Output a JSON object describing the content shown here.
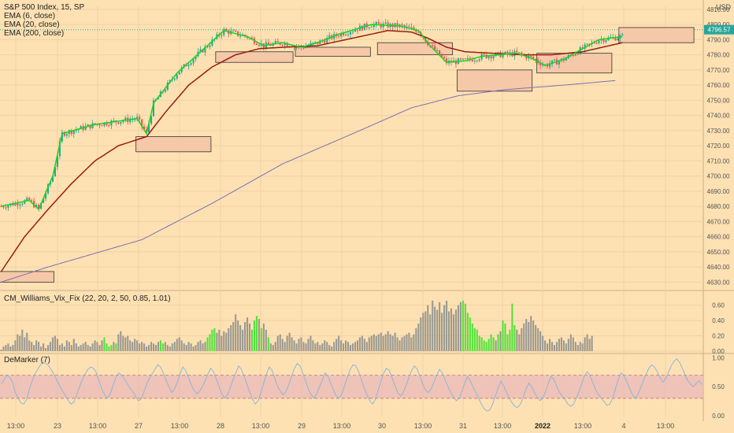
{
  "header": {
    "symbol_line": "S&P 500 Index, 15, SP",
    "indicators": [
      "EMA (6, close)",
      "EMA (20, close)",
      "EMA (200, close)"
    ],
    "currency": "USD",
    "last_price": "4796.57"
  },
  "colors": {
    "background": "#fde1b3",
    "candle_up": "#26a69a",
    "candle_down": "#ef5350",
    "ema6": "#19d419",
    "ema20": "#9b1b10",
    "ema200": "#7e6fb0",
    "zone_fill": "#f5c8a8",
    "zone_border": "#333333",
    "vix_normal": "#9a9890",
    "vix_signal": "#52e23a",
    "demarker_line": "#8fb6d6",
    "demarker_band": "#e8b7b9"
  },
  "chart_data": [
    {
      "type": "candlestick",
      "title": "S&P 500 Index, 15, SP",
      "ylim": [
        4625,
        4812
      ],
      "y_ticks": [
        4630,
        4640,
        4650,
        4660,
        4670,
        4680,
        4690,
        4700,
        4710,
        4720,
        4730,
        4740,
        4750,
        4760,
        4770,
        4780,
        4790,
        4800,
        4810
      ],
      "x_ticks": [
        "13:00",
        "23",
        "13:00",
        "27",
        "13:00",
        "28",
        "13:00",
        "29",
        "13:00",
        "30",
        "13:00",
        "31",
        "13:00",
        "2022",
        "13:00",
        "4",
        "13:00"
      ],
      "ema6_anchors": [
        [
          0,
          4680
        ],
        [
          12,
          4684
        ],
        [
          16,
          4678
        ],
        [
          22,
          4700
        ],
        [
          26,
          4728
        ],
        [
          40,
          4734
        ],
        [
          58,
          4738
        ],
        [
          62,
          4728
        ],
        [
          65,
          4748
        ],
        [
          75,
          4768
        ],
        [
          88,
          4786
        ],
        [
          95,
          4796
        ],
        [
          105,
          4792
        ],
        [
          112,
          4786
        ],
        [
          120,
          4788
        ],
        [
          128,
          4785
        ],
        [
          135,
          4788
        ],
        [
          145,
          4794
        ],
        [
          158,
          4800
        ],
        [
          170,
          4799
        ],
        [
          178,
          4796
        ],
        [
          183,
          4786
        ],
        [
          190,
          4775
        ],
        [
          198,
          4776
        ],
        [
          205,
          4779
        ],
        [
          212,
          4780
        ],
        [
          220,
          4781
        ],
        [
          226,
          4778
        ],
        [
          232,
          4773
        ],
        [
          240,
          4777
        ],
        [
          248,
          4784
        ],
        [
          255,
          4790
        ],
        [
          265,
          4792
        ]
      ],
      "ema20_anchors": [
        [
          0,
          4637
        ],
        [
          10,
          4660
        ],
        [
          20,
          4678
        ],
        [
          30,
          4695
        ],
        [
          40,
          4710
        ],
        [
          50,
          4720
        ],
        [
          62,
          4726
        ],
        [
          70,
          4742
        ],
        [
          80,
          4760
        ],
        [
          90,
          4772
        ],
        [
          100,
          4780
        ],
        [
          110,
          4784
        ],
        [
          120,
          4785
        ],
        [
          135,
          4786
        ],
        [
          150,
          4791
        ],
        [
          165,
          4796
        ],
        [
          175,
          4795
        ],
        [
          182,
          4791
        ],
        [
          190,
          4785
        ],
        [
          198,
          4782
        ],
        [
          210,
          4781
        ],
        [
          222,
          4780
        ],
        [
          235,
          4780
        ],
        [
          248,
          4782
        ],
        [
          265,
          4788
        ]
      ],
      "ema200_anchors": [
        [
          0,
          4630
        ],
        [
          20,
          4640
        ],
        [
          60,
          4658
        ],
        [
          90,
          4682
        ],
        [
          120,
          4708
        ],
        [
          150,
          4728
        ],
        [
          175,
          4745
        ],
        [
          195,
          4753
        ],
        [
          215,
          4757
        ],
        [
          240,
          4760
        ],
        [
          262,
          4763
        ]
      ],
      "zones": [
        {
          "x0": -5,
          "x1": 22,
          "y_low": 4630,
          "y_high": 4637
        },
        {
          "x0": 58,
          "x1": 89,
          "y_low": 4716,
          "y_high": 4726
        },
        {
          "x0": 92,
          "x1": 124,
          "y_low": 4775,
          "y_high": 4782
        },
        {
          "x0": 126,
          "x1": 157,
          "y_low": 4779,
          "y_high": 4785
        },
        {
          "x0": 161,
          "x1": 192,
          "y_low": 4780,
          "y_high": 4788
        },
        {
          "x0": 195,
          "x1": 226,
          "y_low": 4756,
          "y_high": 4770
        },
        {
          "x0": 229,
          "x1": 260,
          "y_low": 4768,
          "y_high": 4781
        },
        {
          "x0": 264,
          "x1": 295,
          "y_low": 4788,
          "y_high": 4798
        }
      ]
    },
    {
      "type": "bar",
      "title": "CM_Williams_Vix_Fix (22, 20, 2, 50, 0.85, 1.01)",
      "ylim": [
        0,
        0.72
      ],
      "y_ticks": [
        0.0,
        0.2,
        0.4,
        0.6
      ],
      "values": [
        0.02,
        0.06,
        0.08,
        0.1,
        0.06,
        0.08,
        0.14,
        0.22,
        0.2,
        0.28,
        0.18,
        0.24,
        0.14,
        0.12,
        0.08,
        0.14,
        0.12,
        0.06,
        0.1,
        0.04,
        0.08,
        0.12,
        0.18,
        0.2,
        0.16,
        0.08,
        0.1,
        0.06,
        0.14,
        0.12,
        0.08,
        0.16,
        0.1,
        0.06,
        0.08,
        0.1,
        0.12,
        0.08,
        0.06,
        0.1,
        0.14,
        0.12,
        0.08,
        0.14,
        0.18,
        0.1,
        0.06,
        0.08,
        0.12,
        0.1,
        0.22,
        0.26,
        0.2,
        0.18,
        0.2,
        0.14,
        0.12,
        0.16,
        0.14,
        0.1,
        0.12,
        0.1,
        0.06,
        0.08,
        0.12,
        0.1,
        0.08,
        0.12,
        0.14,
        0.1,
        0.12,
        0.08,
        0.06,
        0.1,
        0.12,
        0.16,
        0.18,
        0.14,
        0.1,
        0.08,
        0.12,
        0.1,
        0.06,
        0.08,
        0.12,
        0.14,
        0.1,
        0.12,
        0.18,
        0.22,
        0.28,
        0.3,
        0.24,
        0.28,
        0.2,
        0.26,
        0.24,
        0.3,
        0.34,
        0.38,
        0.48,
        0.4,
        0.34,
        0.28,
        0.38,
        0.44,
        0.36,
        0.28,
        0.4,
        0.46,
        0.42,
        0.3,
        0.36,
        0.28,
        0.18,
        0.1,
        0.08,
        0.12,
        0.2,
        0.22,
        0.16,
        0.12,
        0.2,
        0.24,
        0.18,
        0.14,
        0.1,
        0.16,
        0.18,
        0.12,
        0.1,
        0.16,
        0.2,
        0.14,
        0.1,
        0.12,
        0.08,
        0.1,
        0.14,
        0.12,
        0.08,
        0.06,
        0.12,
        0.16,
        0.2,
        0.14,
        0.1,
        0.14,
        0.12,
        0.08,
        0.1,
        0.12,
        0.14,
        0.18,
        0.2,
        0.16,
        0.12,
        0.18,
        0.2,
        0.22,
        0.2,
        0.22,
        0.24,
        0.2,
        0.22,
        0.26,
        0.22,
        0.2,
        0.24,
        0.18,
        0.14,
        0.18,
        0.2,
        0.22,
        0.24,
        0.18,
        0.22,
        0.3,
        0.36,
        0.44,
        0.5,
        0.52,
        0.6,
        0.48,
        0.66,
        0.58,
        0.54,
        0.64,
        0.5,
        0.6,
        0.66,
        0.52,
        0.56,
        0.48,
        0.54,
        0.6,
        0.64,
        0.66,
        0.62,
        0.5,
        0.44,
        0.36,
        0.3,
        0.28,
        0.2,
        0.18,
        0.14,
        0.12,
        0.16,
        0.22,
        0.18,
        0.14,
        0.22,
        0.26,
        0.4,
        0.36,
        0.22,
        0.28,
        0.62,
        0.34,
        0.28,
        0.22,
        0.3,
        0.36,
        0.42,
        0.38,
        0.46,
        0.4,
        0.34,
        0.3,
        0.26,
        0.2,
        0.14,
        0.1,
        0.16,
        0.12,
        0.08,
        0.12,
        0.16,
        0.18,
        0.14,
        0.1,
        0.16,
        0.22,
        0.18,
        0.12,
        0.08,
        0.12,
        0.1,
        0.18,
        0.22,
        0.16,
        0.2,
        0.0
      ],
      "signals": [
        44,
        45,
        46,
        47,
        49,
        68,
        69,
        88,
        89,
        90,
        91,
        107,
        108,
        109,
        111,
        114,
        197,
        198,
        199,
        200,
        201,
        202,
        203,
        204,
        205,
        206,
        207,
        208,
        209,
        210,
        212,
        214,
        215,
        216,
        217,
        218,
        219
      ]
    },
    {
      "type": "line",
      "title": "DeMarker (7)",
      "ylim": [
        0,
        1.02
      ],
      "y_ticks": [
        0.0,
        0.5,
        1.0
      ],
      "band": [
        0.3,
        0.7
      ],
      "values": [
        0.55,
        0.62,
        0.7,
        0.66,
        0.58,
        0.4,
        0.3,
        0.22,
        0.2,
        0.28,
        0.45,
        0.6,
        0.72,
        0.8,
        0.88,
        0.92,
        0.9,
        0.86,
        0.78,
        0.7,
        0.6,
        0.5,
        0.42,
        0.34,
        0.26,
        0.2,
        0.24,
        0.36,
        0.5,
        0.62,
        0.72,
        0.8,
        0.84,
        0.82,
        0.74,
        0.6,
        0.46,
        0.36,
        0.3,
        0.38,
        0.52,
        0.66,
        0.74,
        0.7,
        0.64,
        0.56,
        0.48,
        0.42,
        0.34,
        0.26,
        0.28,
        0.4,
        0.54,
        0.64,
        0.72,
        0.8,
        0.88,
        0.84,
        0.74,
        0.62,
        0.5,
        0.4,
        0.46,
        0.58,
        0.72,
        0.84,
        0.78,
        0.66,
        0.54,
        0.44,
        0.38,
        0.42,
        0.5,
        0.6,
        0.72,
        0.82,
        0.76,
        0.64,
        0.5,
        0.38,
        0.3,
        0.36,
        0.48,
        0.62,
        0.74,
        0.86,
        0.8,
        0.68,
        0.54,
        0.4,
        0.28,
        0.2,
        0.26,
        0.4,
        0.56,
        0.72,
        0.84,
        0.78,
        0.64,
        0.5,
        0.42,
        0.36,
        0.42,
        0.54,
        0.68,
        0.82,
        0.9,
        0.86,
        0.74,
        0.6,
        0.46,
        0.36,
        0.3,
        0.38,
        0.5,
        0.62,
        0.74,
        0.68,
        0.56,
        0.44,
        0.34,
        0.3,
        0.38,
        0.52,
        0.66,
        0.8,
        0.88,
        0.86,
        0.76,
        0.62,
        0.48,
        0.36,
        0.26,
        0.2,
        0.28,
        0.44,
        0.6,
        0.74,
        0.82,
        0.78,
        0.66,
        0.52,
        0.4,
        0.34,
        0.4,
        0.52,
        0.66,
        0.78,
        0.86,
        0.8,
        0.68,
        0.54,
        0.44,
        0.4,
        0.46,
        0.58,
        0.7,
        0.8,
        0.74,
        0.62,
        0.5,
        0.4,
        0.32,
        0.26,
        0.3,
        0.42,
        0.56,
        0.68,
        0.6,
        0.5,
        0.4,
        0.3,
        0.2,
        0.12,
        0.08,
        0.1,
        0.2,
        0.34,
        0.48,
        0.6,
        0.52,
        0.4,
        0.3,
        0.22,
        0.16,
        0.14,
        0.2,
        0.32,
        0.46,
        0.56,
        0.5,
        0.4,
        0.32,
        0.26,
        0.3,
        0.42,
        0.56,
        0.68,
        0.62,
        0.5,
        0.4,
        0.34,
        0.28,
        0.2,
        0.16,
        0.2,
        0.3,
        0.42,
        0.56,
        0.7,
        0.76,
        0.68,
        0.56,
        0.44,
        0.36,
        0.3,
        0.24,
        0.18,
        0.2,
        0.3,
        0.46,
        0.62,
        0.74,
        0.7,
        0.6,
        0.48,
        0.38,
        0.3,
        0.36,
        0.48,
        0.6,
        0.72,
        0.82,
        0.88,
        0.84,
        0.76,
        0.66,
        0.58,
        0.64,
        0.74,
        0.86,
        0.94,
        0.98,
        0.92,
        0.82,
        0.7,
        0.6,
        0.54,
        0.5,
        0.56,
        0.6,
        0.54
      ]
    }
  ],
  "panes": {
    "vix_title": "CM_Williams_Vix_Fix (22, 20, 2, 50, 0.85, 1.01)",
    "demarker_title": "DeMarker (7)"
  }
}
